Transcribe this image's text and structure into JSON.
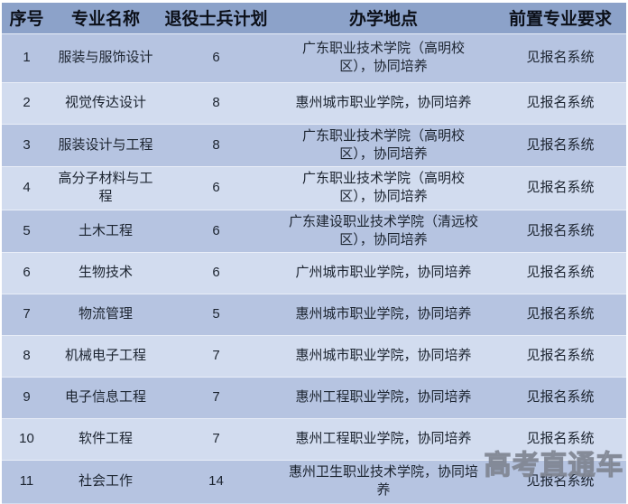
{
  "table": {
    "headers": [
      "序号",
      "专业名称",
      "退役士兵计划",
      "办学地点",
      "前置专业要求"
    ],
    "rows": [
      {
        "no": "1",
        "major": "服装与服饰设计",
        "plan": "6",
        "location": "广东职业技术学院（高明校区），协同培养",
        "requirement": "见报名系统"
      },
      {
        "no": "2",
        "major": "视觉传达设计",
        "plan": "8",
        "location": "惠州城市职业学院，协同培养",
        "requirement": "见报名系统"
      },
      {
        "no": "3",
        "major": "服装设计与工程",
        "plan": "8",
        "location": "广东职业技术学院（高明校区），协同培养",
        "requirement": "见报名系统"
      },
      {
        "no": "4",
        "major": "高分子材料与工程",
        "plan": "6",
        "location": "广东职业技术学院（高明校区），协同培养",
        "requirement": "见报名系统"
      },
      {
        "no": "5",
        "major": "土木工程",
        "plan": "6",
        "location": "广东建设职业技术学院（清远校区），协同培养",
        "requirement": "见报名系统"
      },
      {
        "no": "6",
        "major": "生物技术",
        "plan": "6",
        "location": "广州城市职业学院，协同培养",
        "requirement": "见报名系统"
      },
      {
        "no": "7",
        "major": "物流管理",
        "plan": "5",
        "location": "惠州城市职业学院，协同培养",
        "requirement": "见报名系统"
      },
      {
        "no": "8",
        "major": "机械电子工程",
        "plan": "7",
        "location": "惠州城市职业学院，协同培养",
        "requirement": "见报名系统"
      },
      {
        "no": "9",
        "major": "电子信息工程",
        "plan": "7",
        "location": "惠州工程职业学院，协同培养",
        "requirement": "见报名系统"
      },
      {
        "no": "10",
        "major": "软件工程",
        "plan": "7",
        "location": "惠州工程职业学院，协同培养",
        "requirement": "见报名系统"
      },
      {
        "no": "11",
        "major": "社会工作",
        "plan": "14",
        "location": "惠州卫生职业技术学院，协同培养",
        "requirement": "见报名系统"
      }
    ]
  },
  "watermark": {
    "text": "高考直通车"
  },
  "colors": {
    "header_bg": "#8ca2c9",
    "row_odd_bg": "#b6c4e1",
    "row_even_bg": "#d2dcef",
    "text": "#1c2430",
    "header_text": "#0b0f18",
    "separator": "#e9eef8",
    "watermark": "#878d99"
  }
}
